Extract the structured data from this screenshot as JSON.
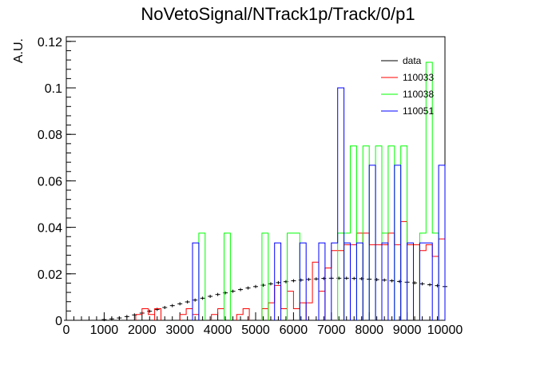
{
  "chart_data": {
    "type": "line",
    "title": "NoVetoSignal/NTrack1p/Track/0/p1",
    "xlabel": "",
    "ylabel": "A.U.",
    "xlim": [
      0,
      10000
    ],
    "ylim": [
      0,
      0.122
    ],
    "x_ticks": [
      0,
      1000,
      2000,
      3000,
      4000,
      5000,
      6000,
      7000,
      8000,
      9000,
      10000
    ],
    "x_tick_labels": [
      "0",
      "1000",
      "2000",
      "3000",
      "4000",
      "5000",
      "6000",
      "7000",
      "8000",
      "9000",
      "10000"
    ],
    "y_ticks": [
      0,
      0.02,
      0.04,
      0.06,
      0.08,
      0.1,
      0.12
    ],
    "y_tick_labels": [
      "0",
      "0.02",
      "0.04",
      "0.06",
      "0.08",
      "0.1",
      "0.12"
    ],
    "legend_position": "top-right",
    "series": [
      {
        "name": "data",
        "color": "#000000",
        "style": "errorbar",
        "x": [
          0,
          200,
          400,
          600,
          800,
          1000,
          1200,
          1400,
          1600,
          1800,
          2000,
          2200,
          2400,
          2600,
          2800,
          3000,
          3200,
          3400,
          3600,
          3800,
          4000,
          4200,
          4400,
          4600,
          4800,
          5000,
          5200,
          5400,
          5600,
          5800,
          6000,
          6200,
          6400,
          6600,
          6800,
          7000,
          7200,
          7400,
          7600,
          7800,
          8000,
          8200,
          8400,
          8600,
          8800,
          9000,
          9200,
          9400,
          9600,
          9800,
          10000
        ],
        "y": [
          0,
          0,
          0,
          0,
          0,
          0.0003,
          0.0006,
          0.001,
          0.0016,
          0.0023,
          0.0031,
          0.0039,
          0.0047,
          0.0055,
          0.0063,
          0.0071,
          0.0079,
          0.0087,
          0.0095,
          0.0103,
          0.0111,
          0.0118,
          0.0125,
          0.0132,
          0.0139,
          0.0145,
          0.0151,
          0.0157,
          0.0162,
          0.0166,
          0.017,
          0.0173,
          0.0176,
          0.0178,
          0.018,
          0.0181,
          0.0181,
          0.0181,
          0.018,
          0.0179,
          0.0177,
          0.0175,
          0.0173,
          0.017,
          0.0167,
          0.0164,
          0.0161,
          0.0157,
          0.0153,
          0.0149,
          0.0145
        ]
      },
      {
        "name": "110033",
        "color": "#ff0000",
        "style": "step",
        "bin_width": 166.67,
        "x": [
          1833.33,
          2000,
          2166.67,
          2333.33,
          3000,
          3166.67,
          3333.33,
          3833.33,
          4000,
          4500,
          4666.67,
          5166.67,
          5333.33,
          5500,
          5666.67,
          5833.33,
          6000,
          6166.67,
          6333.33,
          6500,
          6666.67,
          6833.33,
          7000,
          7166.67,
          7333.33,
          7500,
          7666.67,
          7833.33,
          8000,
          8166.67,
          8333.33,
          8500,
          8666.67,
          8833.33,
          9000,
          9166.67,
          9333.33,
          9500,
          9666.67,
          9833.33
        ],
        "y": [
          0.0025,
          0.005,
          0.0025,
          0.005,
          0.0025,
          0.005,
          0.0025,
          0.0025,
          0.005,
          0.0025,
          0.005,
          0.005,
          0.0075,
          0.015,
          0.005,
          0.0125,
          0.005,
          0.0075,
          0.0075,
          0.025,
          0.0125,
          0.0225,
          0.03,
          0.03,
          0.0325,
          0.0325,
          0.0375,
          0.0375,
          0.0325,
          0.0325,
          0.0325,
          0.0375,
          0.0325,
          0.0425,
          0.0325,
          0.0325,
          0.03,
          0.0325,
          0.0275,
          0.035
        ]
      },
      {
        "name": "110038",
        "color": "#00ff00",
        "style": "step",
        "bin_width": 166.67,
        "x": [
          3500,
          4166.67,
          5166.67,
          5833.33,
          6000,
          7166.67,
          7333.33,
          7500,
          7833.33,
          8166.67,
          8333.33,
          8500,
          8833.33,
          9333.33,
          9500,
          9666.67
        ],
        "y": [
          0.0375,
          0.0375,
          0.0375,
          0.0375,
          0.0375,
          0.0375,
          0.0375,
          0.075,
          0.075,
          0.075,
          0.0375,
          0.075,
          0.075,
          0.0375,
          0.111,
          0.0375
        ]
      },
      {
        "name": "110051",
        "color": "#0000ff",
        "style": "step",
        "bin_width": 166.67,
        "x": [
          3333.33,
          5500,
          6166.67,
          6666.67,
          7000,
          7166.67,
          7333.33,
          7666.67,
          8000,
          8333.33,
          8666.67,
          9000,
          9333.33,
          9500,
          9833.33
        ],
        "y": [
          0.0333,
          0.0333,
          0.0333,
          0.0333,
          0.0333,
          0.1,
          0.0333,
          0.0333,
          0.0667,
          0.0333,
          0.0667,
          0.0333,
          0.0333,
          0.0333,
          0.0667
        ]
      }
    ]
  }
}
